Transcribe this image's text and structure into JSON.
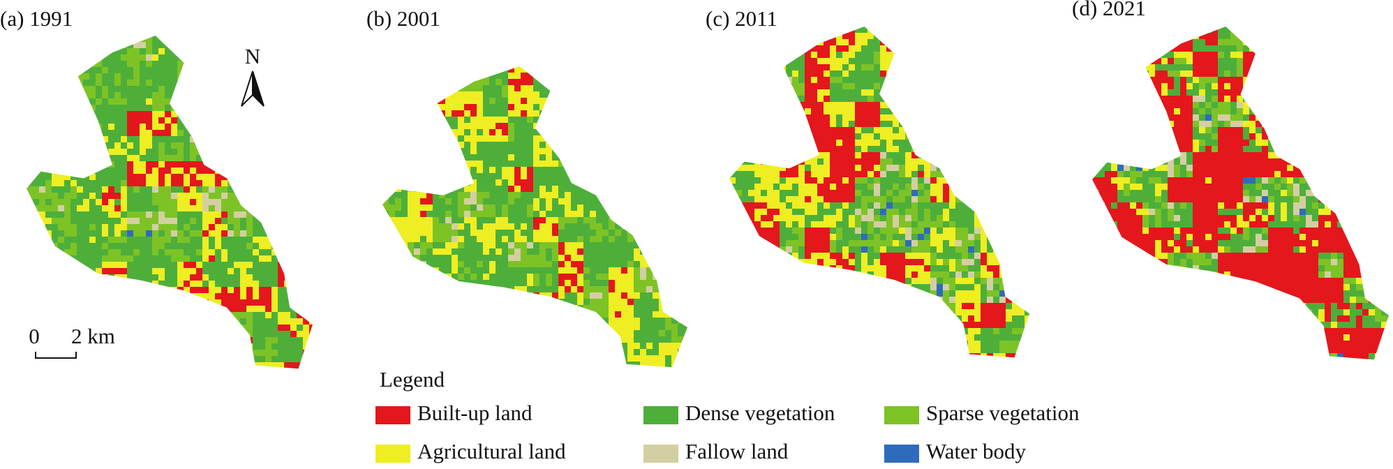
{
  "panels": [
    {
      "label": "(a) 1991"
    },
    {
      "label": "(b) 2001"
    },
    {
      "label": "(c) 2011"
    },
    {
      "label": "(d) 2021"
    }
  ],
  "north_label": "N",
  "scale_bar": {
    "start": "0",
    "end": "2 km"
  },
  "legend": {
    "title": "Legend",
    "items": [
      {
        "label": "Built-up land",
        "color": "#e3171c"
      },
      {
        "label": "Agricultural land",
        "color": "#eeee22"
      },
      {
        "label": "Dense vegetation",
        "color": "#4daf3a"
      },
      {
        "label": "Sparse vegetation",
        "color": "#7dc326"
      },
      {
        "label": "Fallow land",
        "color": "#d3cfa2"
      },
      {
        "label": "Water body",
        "color": "#2f6bbd"
      }
    ]
  }
}
